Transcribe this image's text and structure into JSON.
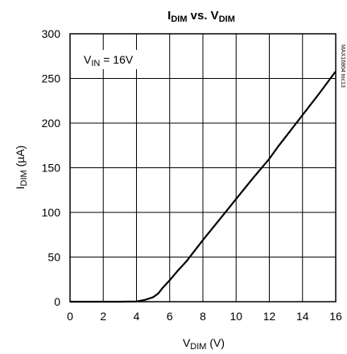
{
  "chart_data": {
    "type": "line",
    "title": {
      "main": "I",
      "main_sub": "DIM",
      "vs": " vs. V",
      "vs_sub": "DIM"
    },
    "xlabel": {
      "main": "V",
      "sub": "DIM",
      "unit": " (V)"
    },
    "ylabel": {
      "main": "I",
      "sub": "DIM",
      "unit": " (µA)"
    },
    "annotation": {
      "main": "V",
      "sub": "IN",
      "rest": " = 16V"
    },
    "figure_id": "MAX16804 toc13",
    "xlim": [
      0,
      16
    ],
    "ylim": [
      0,
      300
    ],
    "x_ticks": [
      0,
      2,
      4,
      6,
      8,
      10,
      12,
      14,
      16
    ],
    "y_ticks": [
      0,
      50,
      100,
      150,
      200,
      250,
      300
    ],
    "grid": true,
    "series": [
      {
        "x": [
          0,
          1,
          2,
          3,
          4,
          4.5,
          5,
          5.3,
          5.6,
          6,
          6.5,
          7,
          7.5,
          8,
          9,
          10,
          11,
          12,
          12.5,
          13,
          14,
          15,
          16
        ],
        "y": [
          0,
          0,
          0,
          0,
          0.3,
          2,
          5,
          9,
          16,
          24,
          35,
          45,
          57,
          69,
          92,
          115,
          138,
          160,
          173,
          185,
          209,
          233,
          258
        ]
      }
    ],
    "line_color": "#000000",
    "grid_color": "#000000"
  }
}
